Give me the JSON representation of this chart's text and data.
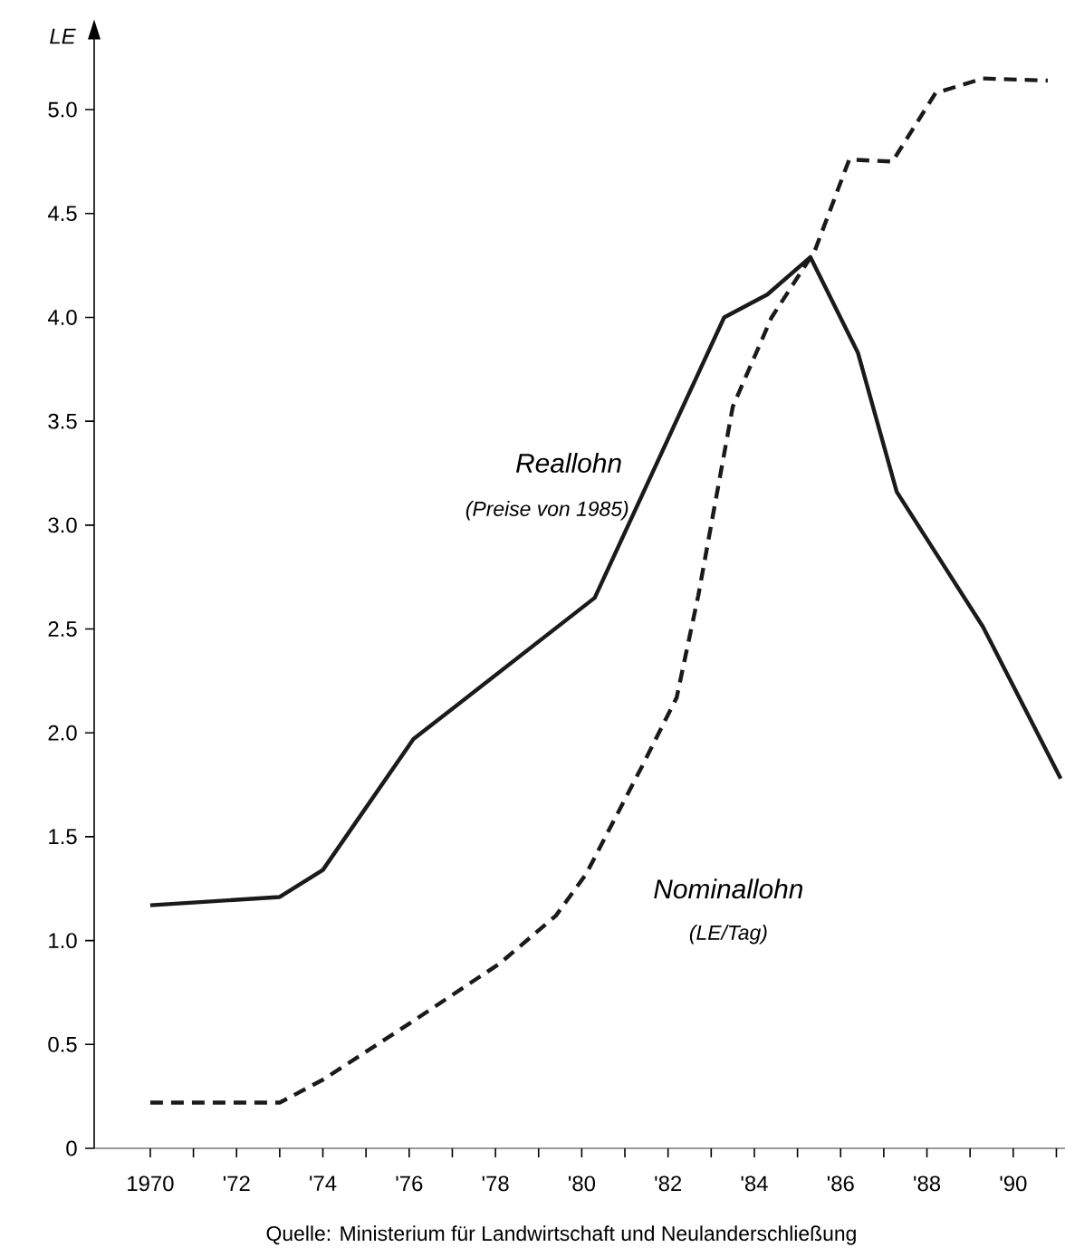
{
  "chart_data": {
    "type": "line",
    "ylabel": "LE",
    "annotations": [
      "(Preise von 1985)",
      "(LE/Tag)",
      "Quelle: Ministerium für Landwirtschaft und Neulanderschließung"
    ],
    "xlim": [
      1968.7,
      1991.2
    ],
    "ylim": [
      0,
      5.35
    ],
    "xticks": [
      {
        "value": 1970,
        "label": "1970"
      },
      {
        "value": 1971,
        "label": null
      },
      {
        "value": 1972,
        "label": "'72"
      },
      {
        "value": 1973,
        "label": null
      },
      {
        "value": 1974,
        "label": "'74"
      },
      {
        "value": 1975,
        "label": null
      },
      {
        "value": 1976,
        "label": "'76"
      },
      {
        "value": 1977,
        "label": null
      },
      {
        "value": 1978,
        "label": "'78"
      },
      {
        "value": 1979,
        "label": null
      },
      {
        "value": 1980,
        "label": "'80"
      },
      {
        "value": 1981,
        "label": null
      },
      {
        "value": 1982,
        "label": "'82"
      },
      {
        "value": 1983,
        "label": null
      },
      {
        "value": 1984,
        "label": "'84"
      },
      {
        "value": 1985,
        "label": null
      },
      {
        "value": 1986,
        "label": "'86"
      },
      {
        "value": 1987,
        "label": null
      },
      {
        "value": 1988,
        "label": "'88"
      },
      {
        "value": 1989,
        "label": null
      },
      {
        "value": 1990,
        "label": "'90"
      },
      {
        "value": 1991,
        "label": null
      }
    ],
    "yticks": [
      0,
      0.5,
      {
        "value": 1,
        "label": "1.0"
      },
      1.5,
      {
        "value": 2,
        "label": "2.0"
      },
      2.5,
      {
        "value": 3,
        "label": "3.0"
      },
      3.5,
      {
        "value": 4,
        "label": "4.0"
      },
      4.5,
      {
        "value": 5,
        "label": "5.0"
      }
    ],
    "series": [
      {
        "name": "Reallohn",
        "color": "#1a1a1a",
        "line_style": "solid",
        "x": [
          1970,
          1973,
          1974,
          1976.1,
          1980.3,
          1983.3,
          1984.3,
          1985.3,
          1986.4,
          1987.3,
          1989.3,
          1991.1
        ],
        "values": [
          1.17,
          1.21,
          1.34,
          1.97,
          2.65,
          4.0,
          4.11,
          4.29,
          3.83,
          3.16,
          2.51,
          1.78
        ]
      },
      {
        "name": "Nominallohn",
        "color": "#1a1a1a",
        "line_style": "dashed",
        "x": [
          1970,
          1973,
          1974,
          1976,
          1978.1,
          1979.4,
          1980.1,
          1981.4,
          1982.2,
          1982.7,
          1983.5,
          1984.4,
          1985.4,
          1986.2,
          1987.2,
          1988.2,
          1989.3,
          1990.8
        ],
        "values": [
          0.22,
          0.22,
          0.33,
          0.6,
          0.89,
          1.12,
          1.32,
          1.84,
          2.17,
          2.66,
          3.57,
          4.0,
          4.32,
          4.76,
          4.75,
          5.08,
          5.15,
          5.14
        ]
      }
    ]
  }
}
